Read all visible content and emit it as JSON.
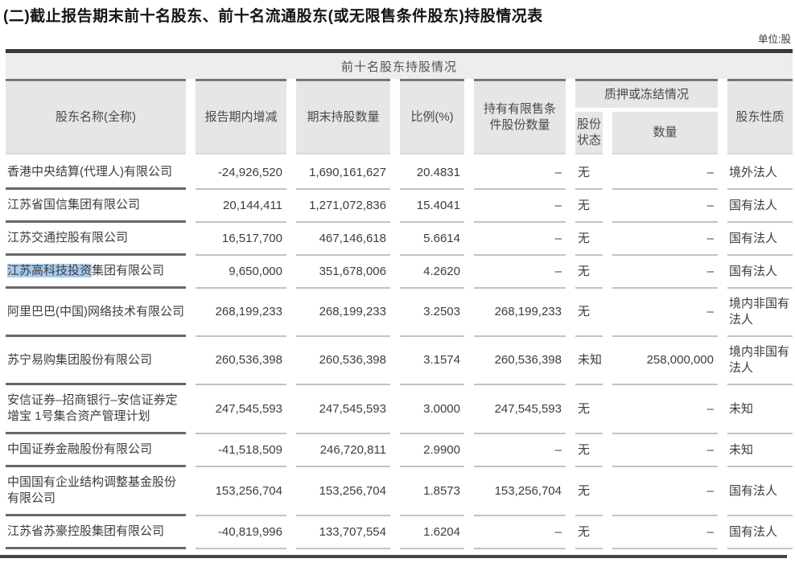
{
  "title": "(二)截止报告期末前十名股东、前十名流通股东(或无限售条件股东)持股情况表",
  "unit_label": "单位:股",
  "highlight_color": "#a9cbea",
  "table": {
    "banner": "前十名股东持股情况",
    "headers": {
      "name": "股东名称(全称)",
      "change": "报告期内增减",
      "end_shares": "期末持股数量",
      "ratio": "比例(%)",
      "restricted": "持有有限售条件股份数量",
      "pledge_group": "质押或冻结情况",
      "pledge_status": "股份状态",
      "pledge_qty": "数量",
      "nature": "股东性质"
    },
    "rows": [
      {
        "name": "香港中央结算(代理人)有限公司",
        "change": "-24,926,520",
        "shares": "1,690,161,627",
        "ratio": "20.4831",
        "restricted": "–",
        "status": "无",
        "qty": "–",
        "nature": "境外法人"
      },
      {
        "name": "江苏省国信集团有限公司",
        "change": "20,144,411",
        "shares": "1,271,072,836",
        "ratio": "15.4041",
        "restricted": "–",
        "status": "无",
        "qty": "–",
        "nature": "国有法人"
      },
      {
        "name": "江苏交通控股有限公司",
        "change": "16,517,700",
        "shares": "467,146,618",
        "ratio": "5.6614",
        "restricted": "–",
        "status": "无",
        "qty": "–",
        "nature": "国有法人"
      },
      {
        "name_hl": "江苏高科技投资",
        "name": "集团有限公司",
        "change": "9,650,000",
        "shares": "351,678,006",
        "ratio": "4.2620",
        "restricted": "–",
        "status": "无",
        "qty": "–",
        "nature": "国有法人"
      },
      {
        "name": "阿里巴巴(中国)网络技术有限公司",
        "change": "268,199,233",
        "shares": "268,199,233",
        "ratio": "3.2503",
        "restricted": "268,199,233",
        "status": "无",
        "qty": "–",
        "nature": "境内非国有法人"
      },
      {
        "name": "苏宁易购集团股份有限公司",
        "change": "260,536,398",
        "shares": "260,536,398",
        "ratio": "3.1574",
        "restricted": "260,536,398",
        "status": "未知",
        "qty": "258,000,000",
        "nature": "境内非国有法人"
      },
      {
        "name": "安信证券–招商银行–安信证券定增宝 1号集合资产管理计划",
        "change": "247,545,593",
        "shares": "247,545,593",
        "ratio": "3.0000",
        "restricted": "247,545,593",
        "status": "无",
        "qty": "–",
        "nature": "未知"
      },
      {
        "name": "中国证券金融股份有限公司",
        "change": "-41,518,509",
        "shares": "246,720,811",
        "ratio": "2.9900",
        "restricted": "–",
        "status": "无",
        "qty": "–",
        "nature": "未知"
      },
      {
        "name": "中国国有企业结构调整基金股份有限公司",
        "change": "153,256,704",
        "shares": "153,256,704",
        "ratio": "1.8573",
        "restricted": "153,256,704",
        "status": "无",
        "qty": "–",
        "nature": "国有法人"
      },
      {
        "name": "江苏省苏豪控股集团有限公司",
        "change": "-40,819,996",
        "shares": "133,707,554",
        "ratio": "1.6204",
        "restricted": "–",
        "status": "无",
        "qty": "–",
        "nature": "国有法人"
      }
    ]
  }
}
